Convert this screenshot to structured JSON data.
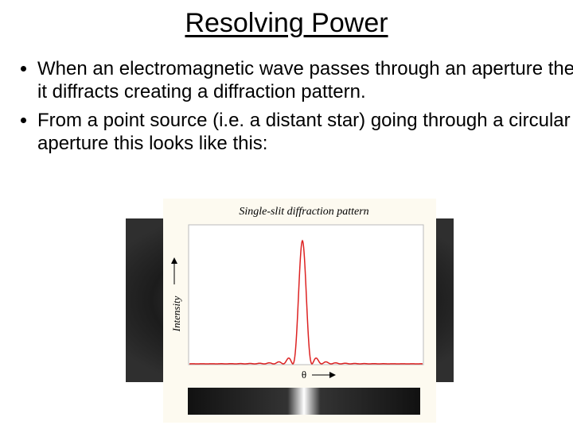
{
  "header": {
    "title": "Resolving Power"
  },
  "bullets": [
    "When an electromagnetic wave passes through an aperture then it diffracts creating a diffraction pattern.",
    "From a point source (i.e. a distant star) going through a circular aperture this looks like this:"
  ],
  "figure": {
    "title": "Single-slit diffraction pattern",
    "y_label": "Intensity",
    "x_label": "θ"
  }
}
